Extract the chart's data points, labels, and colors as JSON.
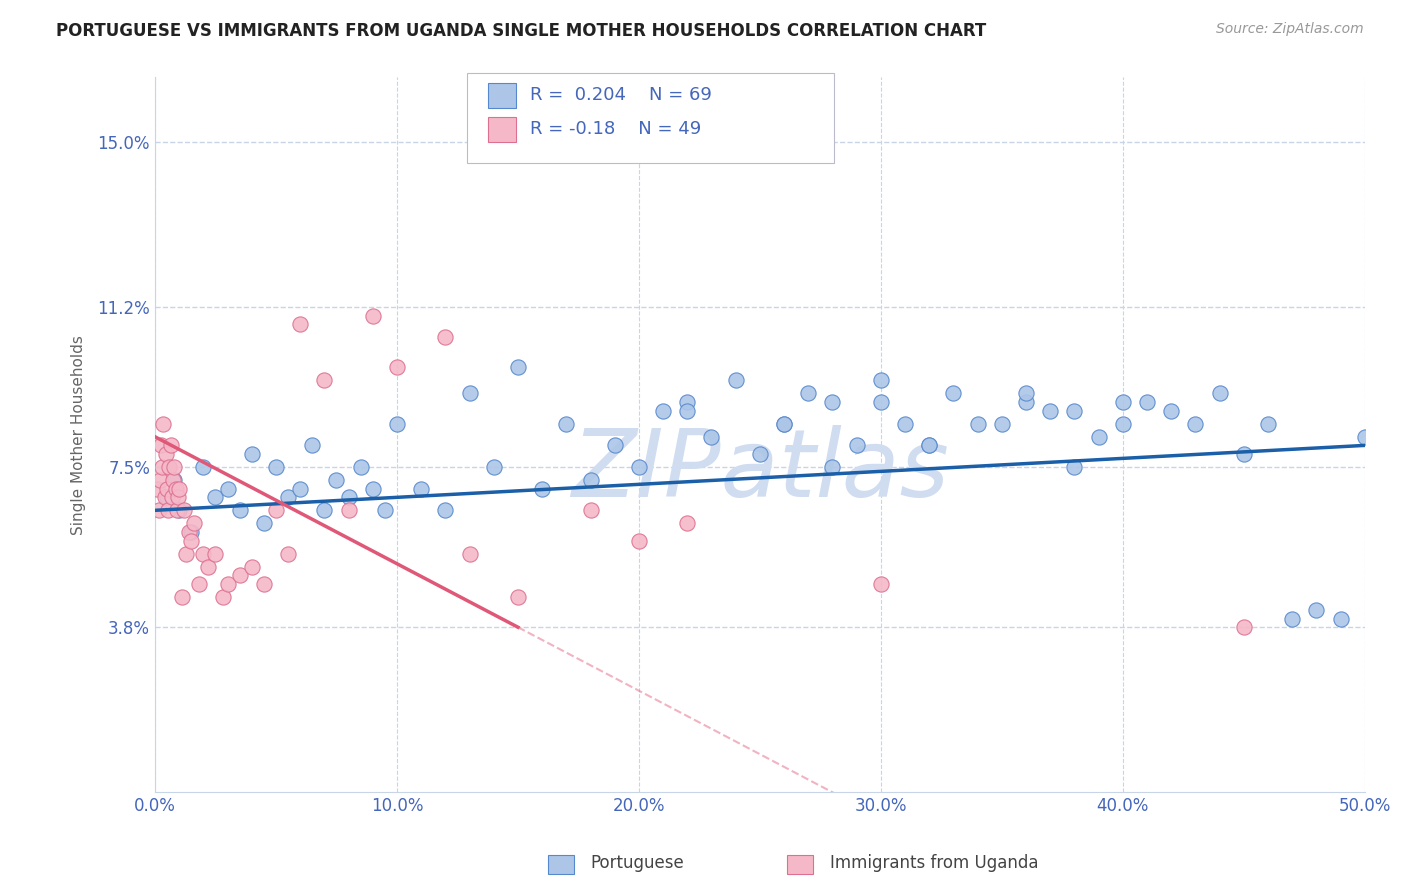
{
  "title": "PORTUGUESE VS IMMIGRANTS FROM UGANDA SINGLE MOTHER HOUSEHOLDS CORRELATION CHART",
  "source": "Source: ZipAtlas.com",
  "ylabel": "Single Mother Households",
  "xlim": [
    0.0,
    50.0
  ],
  "ylim": [
    0.0,
    16.5
  ],
  "yticks": [
    3.8,
    7.5,
    11.2,
    15.0
  ],
  "ytick_labels": [
    "3.8%",
    "7.5%",
    "11.2%",
    "15.0%"
  ],
  "xticks": [
    0.0,
    10.0,
    20.0,
    30.0,
    40.0,
    50.0
  ],
  "xtick_labels": [
    "0.0%",
    "10.0%",
    "20.0%",
    "30.0%",
    "40.0%",
    "50.0%"
  ],
  "blue_R": 0.204,
  "blue_N": 69,
  "pink_R": -0.18,
  "pink_N": 49,
  "blue_color": "#adc6e8",
  "blue_edge_color": "#5588cc",
  "blue_line_color": "#1a5fa8",
  "pink_color": "#f5b8c8",
  "pink_edge_color": "#dd7090",
  "pink_line_color": "#e05878",
  "watermark": "ZIPatlas",
  "watermark_color": "#d0dcf0",
  "background_color": "#ffffff",
  "grid_color": "#c8d4e8",
  "label_color": "#4466bb",
  "title_color": "#222222",
  "blue_line_y0": 6.5,
  "blue_line_y1": 8.0,
  "pink_line_y0": 8.2,
  "pink_line_y1": 3.8,
  "pink_solid_x_end": 15.0,
  "blue_scatter_x": [
    0.5,
    0.8,
    1.0,
    1.5,
    2.0,
    2.5,
    3.0,
    3.5,
    4.0,
    4.5,
    5.0,
    5.5,
    6.0,
    6.5,
    7.0,
    7.5,
    8.0,
    8.5,
    9.0,
    9.5,
    10.0,
    11.0,
    12.0,
    13.0,
    14.0,
    15.0,
    16.0,
    17.0,
    18.0,
    19.0,
    20.0,
    21.0,
    22.0,
    23.0,
    24.0,
    25.0,
    26.0,
    27.0,
    28.0,
    29.0,
    30.0,
    31.0,
    32.0,
    33.0,
    35.0,
    36.0,
    37.0,
    38.0,
    39.0,
    40.0,
    41.0,
    42.0,
    43.0,
    44.0,
    45.0,
    46.0,
    47.0,
    48.0,
    49.0,
    50.0,
    22.0,
    26.0,
    28.0,
    30.0,
    32.0,
    34.0,
    36.0,
    38.0,
    40.0
  ],
  "blue_scatter_y": [
    6.8,
    7.2,
    6.5,
    6.0,
    7.5,
    6.8,
    7.0,
    6.5,
    7.8,
    6.2,
    7.5,
    6.8,
    7.0,
    8.0,
    6.5,
    7.2,
    6.8,
    7.5,
    7.0,
    6.5,
    8.5,
    7.0,
    6.5,
    9.2,
    7.5,
    9.8,
    7.0,
    8.5,
    7.2,
    8.0,
    7.5,
    8.8,
    9.0,
    8.2,
    9.5,
    7.8,
    8.5,
    9.2,
    7.5,
    8.0,
    9.0,
    8.5,
    8.0,
    9.2,
    8.5,
    9.0,
    8.8,
    7.5,
    8.2,
    8.5,
    9.0,
    8.8,
    8.5,
    9.2,
    7.8,
    8.5,
    4.0,
    4.2,
    4.0,
    8.2,
    8.8,
    8.5,
    9.0,
    9.5,
    8.0,
    8.5,
    9.2,
    8.8,
    9.0
  ],
  "pink_scatter_x": [
    0.1,
    0.15,
    0.2,
    0.25,
    0.3,
    0.35,
    0.4,
    0.45,
    0.5,
    0.55,
    0.6,
    0.65,
    0.7,
    0.75,
    0.8,
    0.85,
    0.9,
    0.95,
    1.0,
    1.1,
    1.2,
    1.3,
    1.4,
    1.5,
    1.6,
    1.8,
    2.0,
    2.2,
    2.5,
    2.8,
    3.0,
    3.5,
    4.0,
    4.5,
    5.0,
    5.5,
    6.0,
    7.0,
    8.0,
    9.0,
    10.0,
    12.0,
    13.0,
    15.0,
    18.0,
    20.0,
    22.0,
    30.0,
    45.0
  ],
  "pink_scatter_y": [
    7.0,
    6.5,
    7.2,
    8.0,
    7.5,
    8.5,
    6.8,
    7.8,
    7.0,
    6.5,
    7.5,
    8.0,
    6.8,
    7.2,
    7.5,
    7.0,
    6.5,
    6.8,
    7.0,
    4.5,
    6.5,
    5.5,
    6.0,
    5.8,
    6.2,
    4.8,
    5.5,
    5.2,
    5.5,
    4.5,
    4.8,
    5.0,
    5.2,
    4.8,
    6.5,
    5.5,
    10.8,
    9.5,
    6.5,
    11.0,
    9.8,
    10.5,
    5.5,
    4.5,
    6.5,
    5.8,
    6.2,
    4.8,
    3.8
  ]
}
